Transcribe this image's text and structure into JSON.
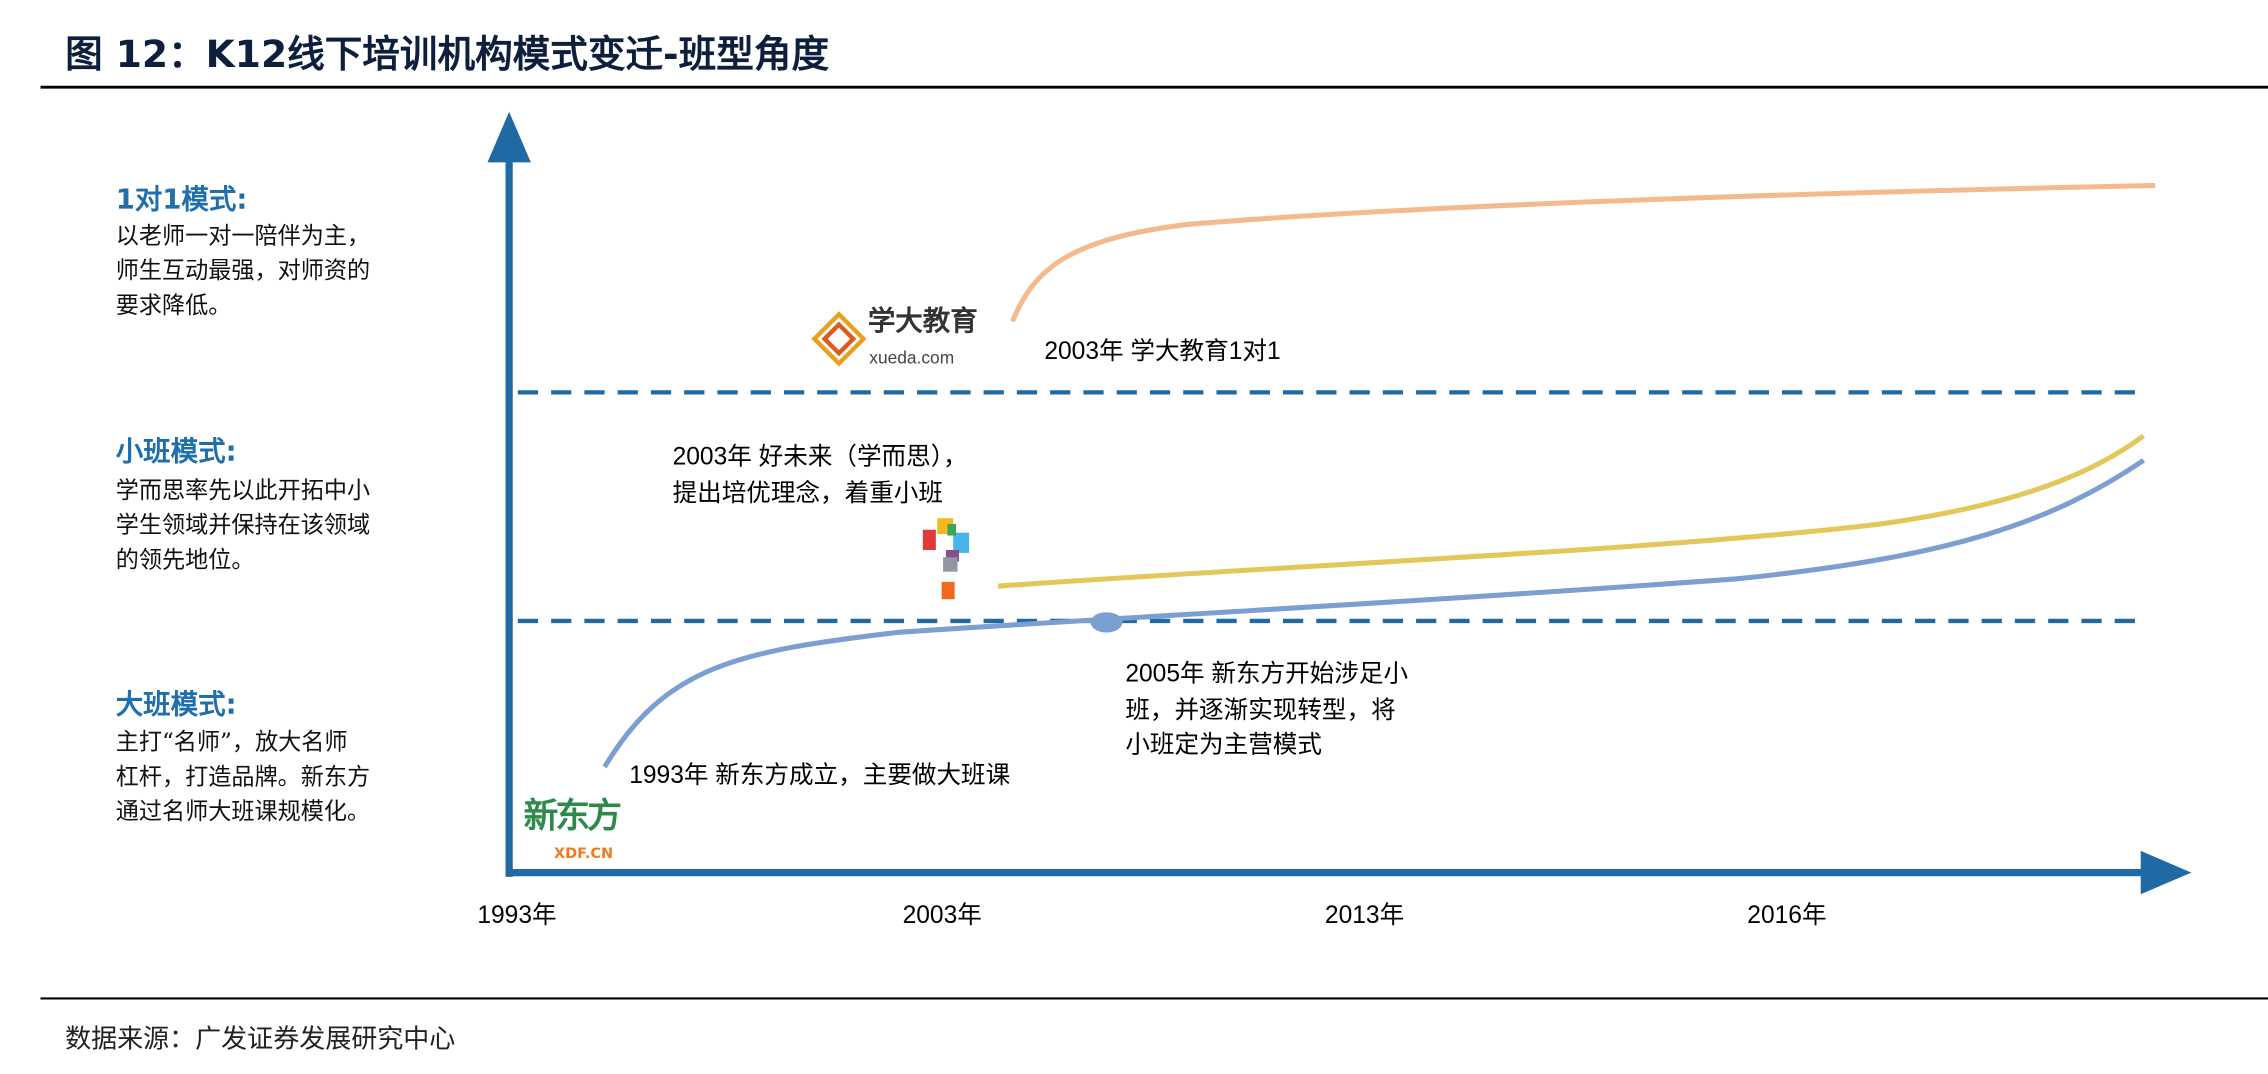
{
  "title": "图 12：K12线下培训机构模式变迁-班型角度",
  "modes": [
    {
      "heading": "1对1模式:",
      "lines": [
        "以老师一对一陪伴为主，",
        "师生互动最强，对师资的",
        "要求降低。"
      ]
    },
    {
      "heading": "小班模式:",
      "lines": [
        "学而思率先以此开拓中小",
        "学生领域并保持在该领域",
        "的领先地位。"
      ]
    },
    {
      "heading": "大班模式:",
      "lines": [
        "主打“名师”，放大名师",
        "杠杆，打造品牌。新东方",
        "通过名师大班课规模化。"
      ]
    }
  ],
  "annotations": {
    "xueda": "2003年 学大教育1对1",
    "tal": [
      "2003年 好未来（学而思），",
      "提出培优理念，着重小班"
    ],
    "xdf_2005": [
      "2005年 新东方开始涉足小",
      "班，并逐渐实现转型，将",
      "小班定为主营模式"
    ],
    "xdf_1993": "1993年 新东方成立，主要做大班课"
  },
  "logos": {
    "xueda": {
      "name": "学大教育",
      "sub": "xueda.com"
    },
    "xdf": {
      "name": "新东方",
      "sub": "XDF.CN"
    }
  },
  "x_ticks": [
    "1993年",
    "2003年",
    "2013年",
    "2016年"
  ],
  "source": "数据来源：广发证券发展研究中心",
  "colors": {
    "axis": "#1f6aa5",
    "one_on_one": "#f5b98e",
    "small_class": "#e3c75a",
    "large_class": "#7b9fd0",
    "heading": "#1f6fae"
  }
}
